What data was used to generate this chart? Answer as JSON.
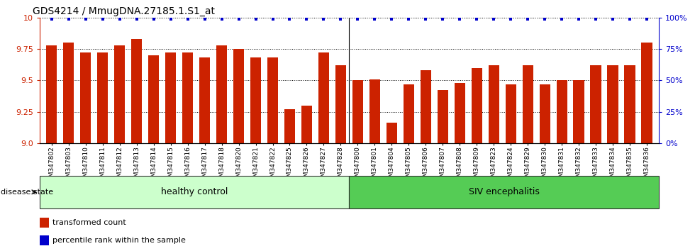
{
  "title": "GDS4214 / MmugDNA.27185.1.S1_at",
  "samples": [
    "GSM347802",
    "GSM347803",
    "GSM347810",
    "GSM347811",
    "GSM347812",
    "GSM347813",
    "GSM347814",
    "GSM347815",
    "GSM347816",
    "GSM347817",
    "GSM347818",
    "GSM347820",
    "GSM347821",
    "GSM347822",
    "GSM347825",
    "GSM347826",
    "GSM347827",
    "GSM347828",
    "GSM347800",
    "GSM347801",
    "GSM347804",
    "GSM347805",
    "GSM347806",
    "GSM347807",
    "GSM347808",
    "GSM347809",
    "GSM347823",
    "GSM347824",
    "GSM347829",
    "GSM347830",
    "GSM347831",
    "GSM347832",
    "GSM347833",
    "GSM347834",
    "GSM347835",
    "GSM347836"
  ],
  "bar_values": [
    9.78,
    9.8,
    9.72,
    9.72,
    9.78,
    9.83,
    9.7,
    9.72,
    9.72,
    9.68,
    9.78,
    9.75,
    9.68,
    9.68,
    9.27,
    9.3,
    9.72,
    9.62,
    9.5,
    9.51,
    9.16,
    9.47,
    9.58,
    9.42,
    9.48,
    9.6,
    9.62,
    9.47,
    9.62,
    9.47,
    9.5,
    9.5,
    9.62,
    9.62,
    9.62,
    9.8
  ],
  "percentile_values": [
    99,
    99,
    99,
    99,
    99,
    99,
    99,
    99,
    99,
    99,
    99,
    99,
    99,
    99,
    99,
    99,
    99,
    99,
    99,
    99,
    99,
    99,
    99,
    99,
    99,
    99,
    99,
    99,
    99,
    99,
    99,
    99,
    99,
    99,
    99,
    99
  ],
  "healthy_count": 18,
  "siv_count": 18,
  "bar_color": "#cc2200",
  "percentile_color": "#0000cc",
  "ylim": [
    9.0,
    10.0
  ],
  "y_ticks": [
    9.0,
    9.25,
    9.5,
    9.75,
    10.0
  ],
  "right_yticks": [
    0,
    25,
    50,
    75,
    100
  ],
  "right_ylim": [
    0,
    100
  ],
  "healthy_label": "healthy control",
  "siv_label": "SIV encephalitis",
  "disease_label": "disease state",
  "legend_bar_label": "transformed count",
  "legend_pct_label": "percentile rank within the sample",
  "bar_color_hex": "#cc2200",
  "pct_color_hex": "#0000cc",
  "healthy_bg": "#ccffcc",
  "siv_bg": "#55cc55"
}
